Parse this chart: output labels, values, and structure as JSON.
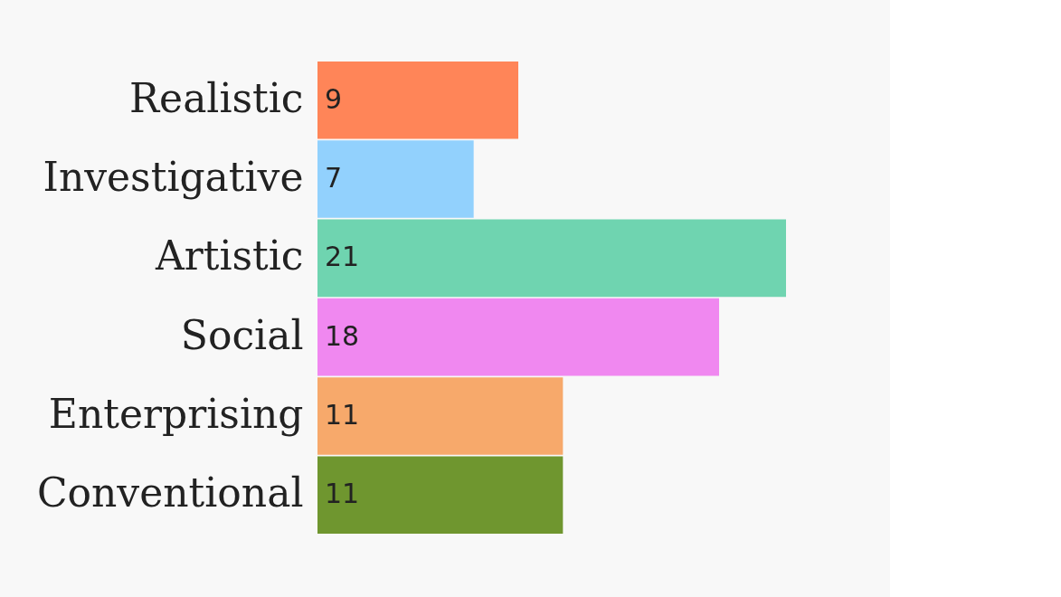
{
  "chart_data": {
    "type": "bar",
    "orientation": "horizontal",
    "tick_labels": "y",
    "data_labels": true,
    "categories": [
      "Realistic",
      "Investigative",
      "Artistic",
      "Social",
      "Enterprising",
      "Conventional"
    ],
    "values": [
      9,
      7,
      21,
      18,
      11,
      11
    ],
    "colors": [
      "#ff8558",
      "#92d1fd",
      "#6fd4b0",
      "#f088f0",
      "#f7a96b",
      "#6f962f"
    ]
  }
}
